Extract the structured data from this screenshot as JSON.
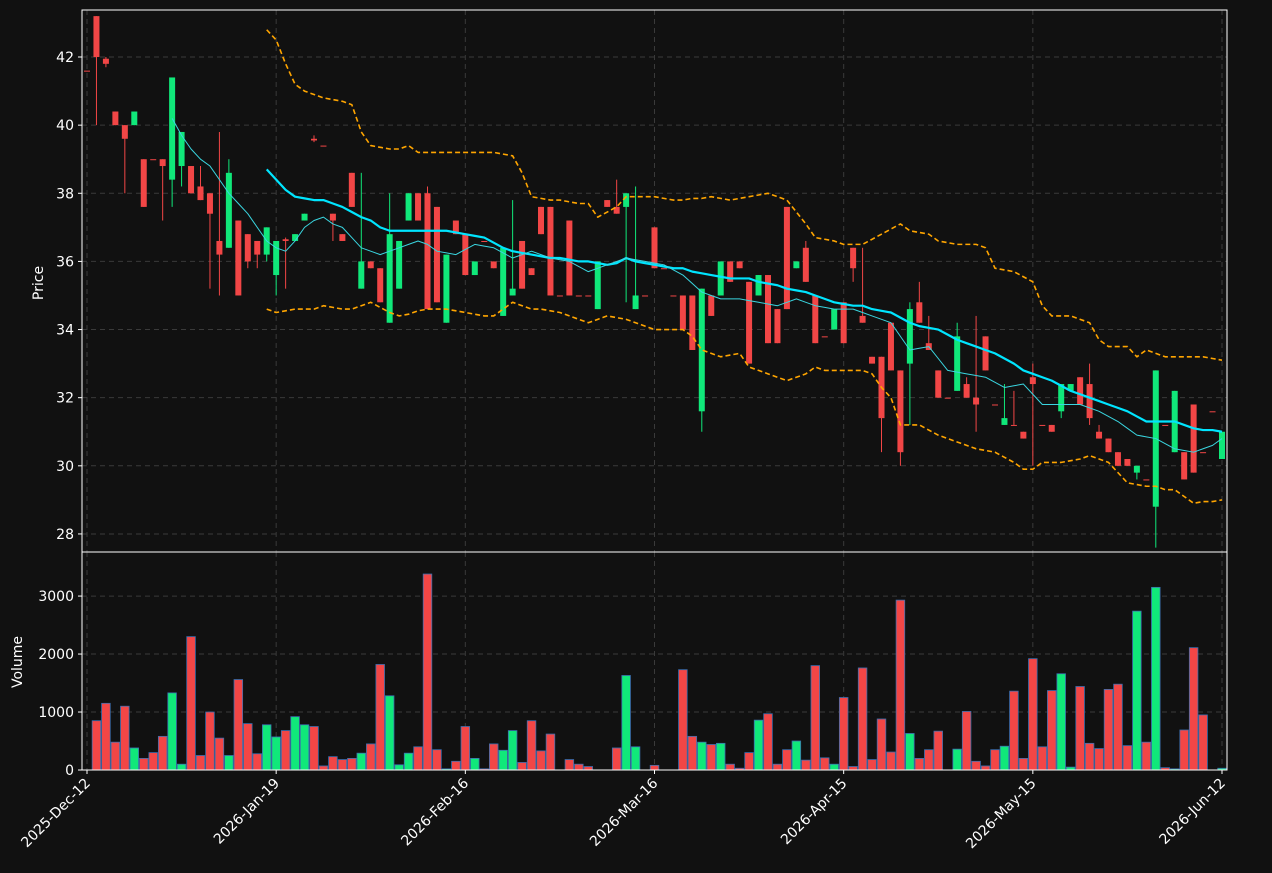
{
  "chart_data": {
    "type": "candlestick",
    "ylabel": "Price",
    "categories": [
      "2025-Dec-12",
      null,
      null,
      null,
      null,
      null,
      null,
      null,
      null,
      null,
      null,
      null,
      null,
      null,
      null,
      null,
      null,
      null,
      null,
      null,
      "2026-Jan-19",
      null,
      null,
      null,
      null,
      null,
      null,
      null,
      null,
      null,
      null,
      null,
      null,
      null,
      null,
      null,
      null,
      null,
      null,
      null,
      "2026-Feb-16",
      null,
      null,
      null,
      null,
      null,
      null,
      null,
      null,
      null,
      null,
      null,
      null,
      null,
      null,
      null,
      null,
      null,
      null,
      null,
      "2026-Mar-16",
      null,
      null,
      null,
      null,
      null,
      null,
      null,
      null,
      null,
      null,
      null,
      null,
      null,
      null,
      null,
      null,
      null,
      null,
      null,
      "2026-Apr-15",
      null,
      null,
      null,
      null,
      null,
      null,
      null,
      null,
      null,
      null,
      null,
      null,
      null,
      null,
      null,
      null,
      null,
      null,
      null,
      "2026-May-15",
      null,
      null,
      null,
      null,
      null,
      null,
      null,
      null,
      null,
      null,
      null,
      null,
      null,
      null,
      null,
      null,
      null,
      null,
      null,
      "2026-Jun-12"
    ],
    "open": [
      41.6,
      43.2,
      41.95,
      40.4,
      40.0,
      40.0,
      39.0,
      39.0,
      39.0,
      38.4,
      38.8,
      38.8,
      38.2,
      38.0,
      36.6,
      36.4,
      37.2,
      36.8,
      36.6,
      36.2,
      35.6,
      36.65,
      36.6,
      37.2,
      39.6,
      39.4,
      37.4,
      36.8,
      38.6,
      35.2,
      36.0,
      35.8,
      34.2,
      35.2,
      37.2,
      38.0,
      38.0,
      37.6,
      34.2,
      37.2,
      36.8,
      35.6,
      36.6,
      36.0,
      34.4,
      35.0,
      36.6,
      35.8,
      37.6,
      37.6,
      35.0,
      37.2,
      35.0,
      35.0,
      34.6,
      37.8,
      37.6,
      37.6,
      34.6,
      35.0,
      37.0,
      35.8,
      35.0,
      35.0,
      35.0,
      31.6,
      35.0,
      35.0,
      36.0,
      36.0,
      35.4,
      35.0,
      35.6,
      34.6,
      37.6,
      35.8,
      36.4,
      35.0,
      33.8,
      34.0,
      34.8,
      36.4,
      34.4,
      33.2,
      33.2,
      34.2,
      32.8,
      33.0,
      34.8,
      33.6,
      32.8,
      32.0,
      32.2,
      32.4,
      32.0,
      33.8,
      31.8,
      31.2,
      31.2,
      31.0,
      32.6,
      31.2,
      31.2,
      31.6,
      32.2,
      32.6,
      32.4,
      31.0,
      30.8,
      30.4,
      30.2,
      29.8,
      29.6,
      28.8,
      31.2,
      30.4,
      30.4,
      31.8,
      30.4,
      31.6,
      30.2
    ],
    "high": [
      41.6,
      43.2,
      42.0,
      40.4,
      40.0,
      40.4,
      39.0,
      39.0,
      39.0,
      41.4,
      39.8,
      38.8,
      38.8,
      38.0,
      39.8,
      39.0,
      37.2,
      36.8,
      36.6,
      37.0,
      36.6,
      36.7,
      36.8,
      37.4,
      39.7,
      39.4,
      37.4,
      36.8,
      38.6,
      38.6,
      36.0,
      35.8,
      38.0,
      36.6,
      38.0,
      38.0,
      38.2,
      37.6,
      36.2,
      37.2,
      36.8,
      36.0,
      36.6,
      36.0,
      36.4,
      37.8,
      36.6,
      35.8,
      37.6,
      37.6,
      35.0,
      37.2,
      35.0,
      35.0,
      36.0,
      37.8,
      38.4,
      38.0,
      38.2,
      35.0,
      37.0,
      35.8,
      35.0,
      35.0,
      35.0,
      35.2,
      35.0,
      36.0,
      36.0,
      36.0,
      35.4,
      35.6,
      35.6,
      34.6,
      37.6,
      36.0,
      36.6,
      35.0,
      33.8,
      34.6,
      34.8,
      36.4,
      36.4,
      33.2,
      33.2,
      34.2,
      32.8,
      34.8,
      35.4,
      34.4,
      32.8,
      32.0,
      34.2,
      32.6,
      34.4,
      33.8,
      31.8,
      32.4,
      32.2,
      31.0,
      33.0,
      31.2,
      31.2,
      32.4,
      32.4,
      32.6,
      33.0,
      31.2,
      30.8,
      30.4,
      30.2,
      30.0,
      29.6,
      32.8,
      31.2,
      32.2,
      30.4,
      31.8,
      30.4,
      31.6,
      31.0
    ],
    "low": [
      41.6,
      40.0,
      41.7,
      40.0,
      38.0,
      40.0,
      37.6,
      39.0,
      37.2,
      37.6,
      38.2,
      38.0,
      37.8,
      35.2,
      35.0,
      36.4,
      35.0,
      35.8,
      35.8,
      36.0,
      35.0,
      35.2,
      36.6,
      37.2,
      39.5,
      39.4,
      36.6,
      36.6,
      37.6,
      35.2,
      35.8,
      34.8,
      34.2,
      35.2,
      37.2,
      37.2,
      34.6,
      34.8,
      34.2,
      36.8,
      35.6,
      35.6,
      36.6,
      35.8,
      34.4,
      35.0,
      35.2,
      35.6,
      36.8,
      35.0,
      35.0,
      35.0,
      35.0,
      35.0,
      34.6,
      37.6,
      37.4,
      34.8,
      34.6,
      35.0,
      35.8,
      35.8,
      35.0,
      34.0,
      33.4,
      31.0,
      34.4,
      35.0,
      35.4,
      35.8,
      33.0,
      35.0,
      33.6,
      33.6,
      34.6,
      35.8,
      35.4,
      33.6,
      33.8,
      34.0,
      33.6,
      35.4,
      34.2,
      33.0,
      30.4,
      32.8,
      30.0,
      31.2,
      34.2,
      33.4,
      32.0,
      32.0,
      32.2,
      32.0,
      31.0,
      32.8,
      31.8,
      31.2,
      31.2,
      30.8,
      30.0,
      31.2,
      31.0,
      31.4,
      32.2,
      31.8,
      31.2,
      30.8,
      30.4,
      30.0,
      30.0,
      29.6,
      29.6,
      27.6,
      31.2,
      30.4,
      29.6,
      29.8,
      30.4,
      31.6,
      30.2
    ],
    "close": [
      41.6,
      42.0,
      41.8,
      40.0,
      39.6,
      40.4,
      37.6,
      39.0,
      38.8,
      41.4,
      39.8,
      38.0,
      37.8,
      37.4,
      36.2,
      38.6,
      35.0,
      36.0,
      36.2,
      37.0,
      36.6,
      36.6,
      36.8,
      37.4,
      39.55,
      39.4,
      37.2,
      36.6,
      37.6,
      36.0,
      35.8,
      34.8,
      36.8,
      36.6,
      38.0,
      37.2,
      34.6,
      34.8,
      36.2,
      36.8,
      35.6,
      36.0,
      36.6,
      35.8,
      36.4,
      35.2,
      35.2,
      35.6,
      36.8,
      35.0,
      35.0,
      35.0,
      35.0,
      35.0,
      36.0,
      37.6,
      37.4,
      38.0,
      35.0,
      35.0,
      35.8,
      35.8,
      35.0,
      34.0,
      33.4,
      35.2,
      34.4,
      36.0,
      35.4,
      35.8,
      33.0,
      35.6,
      33.6,
      33.6,
      34.6,
      36.0,
      35.4,
      33.6,
      33.8,
      34.6,
      33.6,
      35.8,
      34.2,
      33.0,
      31.4,
      32.8,
      30.4,
      34.6,
      34.2,
      33.4,
      32.0,
      32.0,
      33.8,
      32.0,
      31.8,
      32.8,
      31.8,
      31.4,
      31.2,
      30.8,
      32.4,
      31.2,
      31.0,
      32.4,
      32.4,
      31.8,
      31.4,
      30.8,
      30.4,
      30.0,
      30.0,
      30.0,
      29.6,
      32.8,
      31.2,
      32.2,
      29.6,
      29.8,
      30.4,
      31.6,
      31.0
    ],
    "up_color": "#10e87a",
    "down_color": "#f24646",
    "ylim": [
      27.47,
      43.38
    ],
    "yticks": [
      28,
      30,
      32,
      34,
      36,
      38,
      40,
      42
    ],
    "grid": true,
    "lines": [
      {
        "color": "#ffa500",
        "width": 1.6,
        "dashed": true,
        "values": [
          null,
          null,
          null,
          null,
          null,
          null,
          null,
          null,
          null,
          null,
          null,
          null,
          null,
          null,
          null,
          null,
          null,
          null,
          null,
          42.8,
          42.5,
          41.8,
          41.2,
          41.0,
          40.9,
          40.8,
          40.75,
          40.7,
          40.6,
          39.8,
          39.4,
          39.35,
          39.3,
          39.3,
          39.4,
          39.2,
          39.2,
          39.2,
          39.2,
          39.2,
          39.2,
          39.2,
          39.2,
          39.2,
          39.15,
          39.1,
          38.6,
          37.9,
          37.85,
          37.8,
          37.8,
          37.75,
          37.7,
          37.7,
          37.3,
          37.45,
          37.6,
          37.9,
          37.9,
          37.9,
          37.9,
          37.85,
          37.8,
          37.8,
          37.85,
          37.85,
          37.9,
          37.85,
          37.8,
          37.85,
          37.9,
          37.95,
          38.0,
          37.9,
          37.8,
          37.45,
          37.1,
          36.7,
          36.65,
          36.6,
          36.5,
          36.5,
          36.5,
          36.65,
          36.8,
          36.95,
          37.1,
          36.9,
          36.85,
          36.8,
          36.6,
          36.55,
          36.5,
          36.5,
          36.5,
          36.4,
          35.8,
          35.75,
          35.7,
          35.55,
          35.4,
          34.7,
          34.4,
          34.4,
          34.4,
          34.3,
          34.2,
          33.7,
          33.5,
          33.5,
          33.5,
          33.2,
          33.4,
          33.3,
          33.2,
          33.2,
          33.2,
          33.2,
          33.2,
          33.15,
          33.1
        ]
      },
      {
        "color": "#ffa500",
        "width": 1.6,
        "dashed": true,
        "values": [
          null,
          null,
          null,
          null,
          null,
          null,
          null,
          null,
          null,
          null,
          null,
          null,
          null,
          null,
          null,
          null,
          null,
          null,
          null,
          34.6,
          34.5,
          34.55,
          34.6,
          34.6,
          34.6,
          34.7,
          34.65,
          34.6,
          34.6,
          34.7,
          34.8,
          34.65,
          34.5,
          34.4,
          34.45,
          34.55,
          34.6,
          34.6,
          34.6,
          34.55,
          34.5,
          34.45,
          34.4,
          34.4,
          34.6,
          34.8,
          34.7,
          34.6,
          34.6,
          34.55,
          34.5,
          34.4,
          34.3,
          34.2,
          34.3,
          34.4,
          34.35,
          34.3,
          34.2,
          34.1,
          34.0,
          34.0,
          34.0,
          34.0,
          33.8,
          33.4,
          33.3,
          33.2,
          33.25,
          33.3,
          32.9,
          32.8,
          32.7,
          32.6,
          32.5,
          32.6,
          32.7,
          32.9,
          32.8,
          32.8,
          32.8,
          32.8,
          32.8,
          32.7,
          32.3,
          32.0,
          31.2,
          31.2,
          31.2,
          31.05,
          30.9,
          30.8,
          30.7,
          30.6,
          30.5,
          30.45,
          30.4,
          30.25,
          30.1,
          29.9,
          29.9,
          30.1,
          30.1,
          30.1,
          30.15,
          30.2,
          30.3,
          30.2,
          30.1,
          29.8,
          29.5,
          29.45,
          29.4,
          29.4,
          29.3,
          29.3,
          29.1,
          28.9,
          28.95,
          28.95,
          29.0
        ]
      },
      {
        "color": "#00e5ff",
        "width": 2.2,
        "dashed": false,
        "values": [
          null,
          null,
          null,
          null,
          null,
          null,
          null,
          null,
          null,
          null,
          null,
          null,
          null,
          null,
          null,
          null,
          null,
          null,
          null,
          38.7,
          38.4,
          38.1,
          37.9,
          37.85,
          37.8,
          37.8,
          37.7,
          37.6,
          37.45,
          37.3,
          37.2,
          37.0,
          36.9,
          36.9,
          36.9,
          36.9,
          36.9,
          36.9,
          36.9,
          36.85,
          36.8,
          36.75,
          36.7,
          36.55,
          36.4,
          36.3,
          36.25,
          36.2,
          36.15,
          36.1,
          36.1,
          36.05,
          36.0,
          36.0,
          35.95,
          35.9,
          35.95,
          36.1,
          36.0,
          35.95,
          35.9,
          35.85,
          35.8,
          35.8,
          35.7,
          35.65,
          35.6,
          35.55,
          35.5,
          35.5,
          35.5,
          35.4,
          35.35,
          35.3,
          35.2,
          35.15,
          35.1,
          35.0,
          34.9,
          34.8,
          34.75,
          34.7,
          34.7,
          34.6,
          34.55,
          34.5,
          34.35,
          34.2,
          34.1,
          34.05,
          34.0,
          33.85,
          33.7,
          33.6,
          33.5,
          33.4,
          33.3,
          33.15,
          33.0,
          32.8,
          32.7,
          32.6,
          32.5,
          32.35,
          32.2,
          32.1,
          32.0,
          31.9,
          31.8,
          31.7,
          31.6,
          31.45,
          31.3,
          31.3,
          31.3,
          31.3,
          31.2,
          31.1,
          31.05,
          31.05,
          31.0
        ]
      },
      {
        "color": "#3ad6e0",
        "width": 1,
        "dashed": false,
        "values": [
          null,
          null,
          null,
          null,
          null,
          null,
          null,
          null,
          null,
          40.2,
          39.7,
          39.3,
          39.0,
          38.8,
          38.4,
          38.0,
          37.7,
          37.4,
          37.0,
          36.6,
          36.4,
          36.3,
          36.6,
          37.0,
          37.2,
          37.3,
          37.1,
          37.0,
          36.7,
          36.4,
          36.3,
          36.2,
          36.3,
          36.4,
          36.5,
          36.6,
          36.5,
          36.3,
          36.25,
          36.2,
          36.35,
          36.5,
          36.45,
          36.4,
          36.25,
          36.1,
          36.2,
          36.3,
          36.2,
          36.1,
          36.05,
          36.0,
          35.85,
          35.7,
          35.8,
          35.9,
          36.0,
          36.1,
          36.05,
          36.0,
          35.95,
          35.9,
          35.75,
          35.6,
          35.35,
          35.1,
          35.0,
          34.9,
          34.9,
          34.9,
          34.85,
          34.8,
          34.75,
          34.7,
          34.8,
          34.9,
          34.8,
          34.7,
          34.65,
          34.6,
          34.6,
          34.6,
          34.5,
          34.4,
          34.3,
          34.2,
          33.8,
          33.4,
          33.45,
          33.5,
          33.15,
          32.8,
          32.75,
          32.7,
          32.65,
          32.6,
          32.45,
          32.3,
          32.35,
          32.4,
          32.1,
          31.8,
          31.8,
          31.8,
          31.8,
          31.8,
          31.7,
          31.6,
          31.45,
          31.3,
          31.1,
          30.9,
          30.85,
          30.8,
          30.65,
          30.5,
          30.45,
          30.4,
          30.5,
          30.6,
          30.8
        ]
      }
    ],
    "volume": {
      "ylabel": "Volume",
      "values": [
        0,
        850,
        1150,
        480,
        1100,
        380,
        200,
        300,
        580,
        1330,
        100,
        2300,
        250,
        1000,
        550,
        250,
        1560,
        800,
        280,
        780,
        570,
        680,
        920,
        780,
        750,
        70,
        230,
        180,
        200,
        290,
        450,
        1820,
        1280,
        90,
        290,
        400,
        3380,
        350,
        20,
        150,
        750,
        200,
        20,
        450,
        340,
        680,
        130,
        850,
        330,
        620,
        0,
        180,
        100,
        60,
        0,
        0,
        380,
        1630,
        400,
        0,
        80,
        0,
        0,
        1730,
        580,
        480,
        440,
        460,
        100,
        30,
        300,
        860,
        970,
        100,
        350,
        500,
        170,
        1800,
        210,
        100,
        1250,
        60,
        1760,
        180,
        880,
        310,
        2930,
        630,
        200,
        350,
        670,
        0,
        360,
        1010,
        150,
        70,
        350,
        410,
        1360,
        200,
        1920,
        400,
        1370,
        1660,
        50,
        1440,
        460,
        370,
        1390,
        1480,
        420,
        2740,
        480,
        3150,
        40,
        20,
        690,
        2110,
        950,
        0,
        30
      ],
      "ylim": [
        0,
        3760
      ],
      "yticks": [
        0,
        1000,
        2000,
        3000
      ]
    }
  }
}
